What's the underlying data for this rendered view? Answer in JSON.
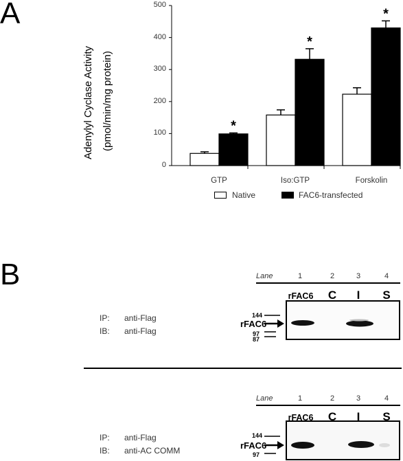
{
  "panel_a": {
    "letter": "A",
    "chart_data": {
      "type": "bar",
      "ylabel_line1": "Adenylyl Cyclase Activity",
      "ylabel_line2": "(pmol/min/mg protein)",
      "ylim": [
        0,
        500
      ],
      "yticks": [
        "0",
        "100",
        "200",
        "300",
        "400",
        "500"
      ],
      "categories": [
        "GTP",
        "Iso:GTP",
        "Forskolin"
      ],
      "series": [
        {
          "name": "Native",
          "values": [
            38,
            158,
            223
          ],
          "errors": [
            5,
            16,
            20
          ],
          "color": "#ffffff"
        },
        {
          "name": "FAC6-transfected",
          "values": [
            99,
            332,
            430
          ],
          "errors": [
            3,
            33,
            22
          ],
          "color": "#000000"
        }
      ],
      "significance_marker": "*",
      "legend_position": "bottom"
    }
  },
  "panel_b": {
    "letter": "B",
    "lane_header": "Lane",
    "lane_numbers": [
      "1",
      "2",
      "3",
      "4"
    ],
    "lane_names": [
      "rFAC6",
      "C",
      "I",
      "S"
    ],
    "blot1": {
      "ip_label": "IP:",
      "ip_value": "anti-Flag",
      "ib_label": "IB:",
      "ib_value": "anti-Flag",
      "mw_markers": [
        "144",
        "97",
        "87"
      ],
      "arrow_label": "rFAC6"
    },
    "blot2": {
      "ip_label": "IP:",
      "ip_value": "anti-Flag",
      "ib_label": "IB:",
      "ib_value": "anti-AC COMM",
      "mw_markers": [
        "144",
        "97"
      ],
      "arrow_label": "rFAC6"
    }
  }
}
